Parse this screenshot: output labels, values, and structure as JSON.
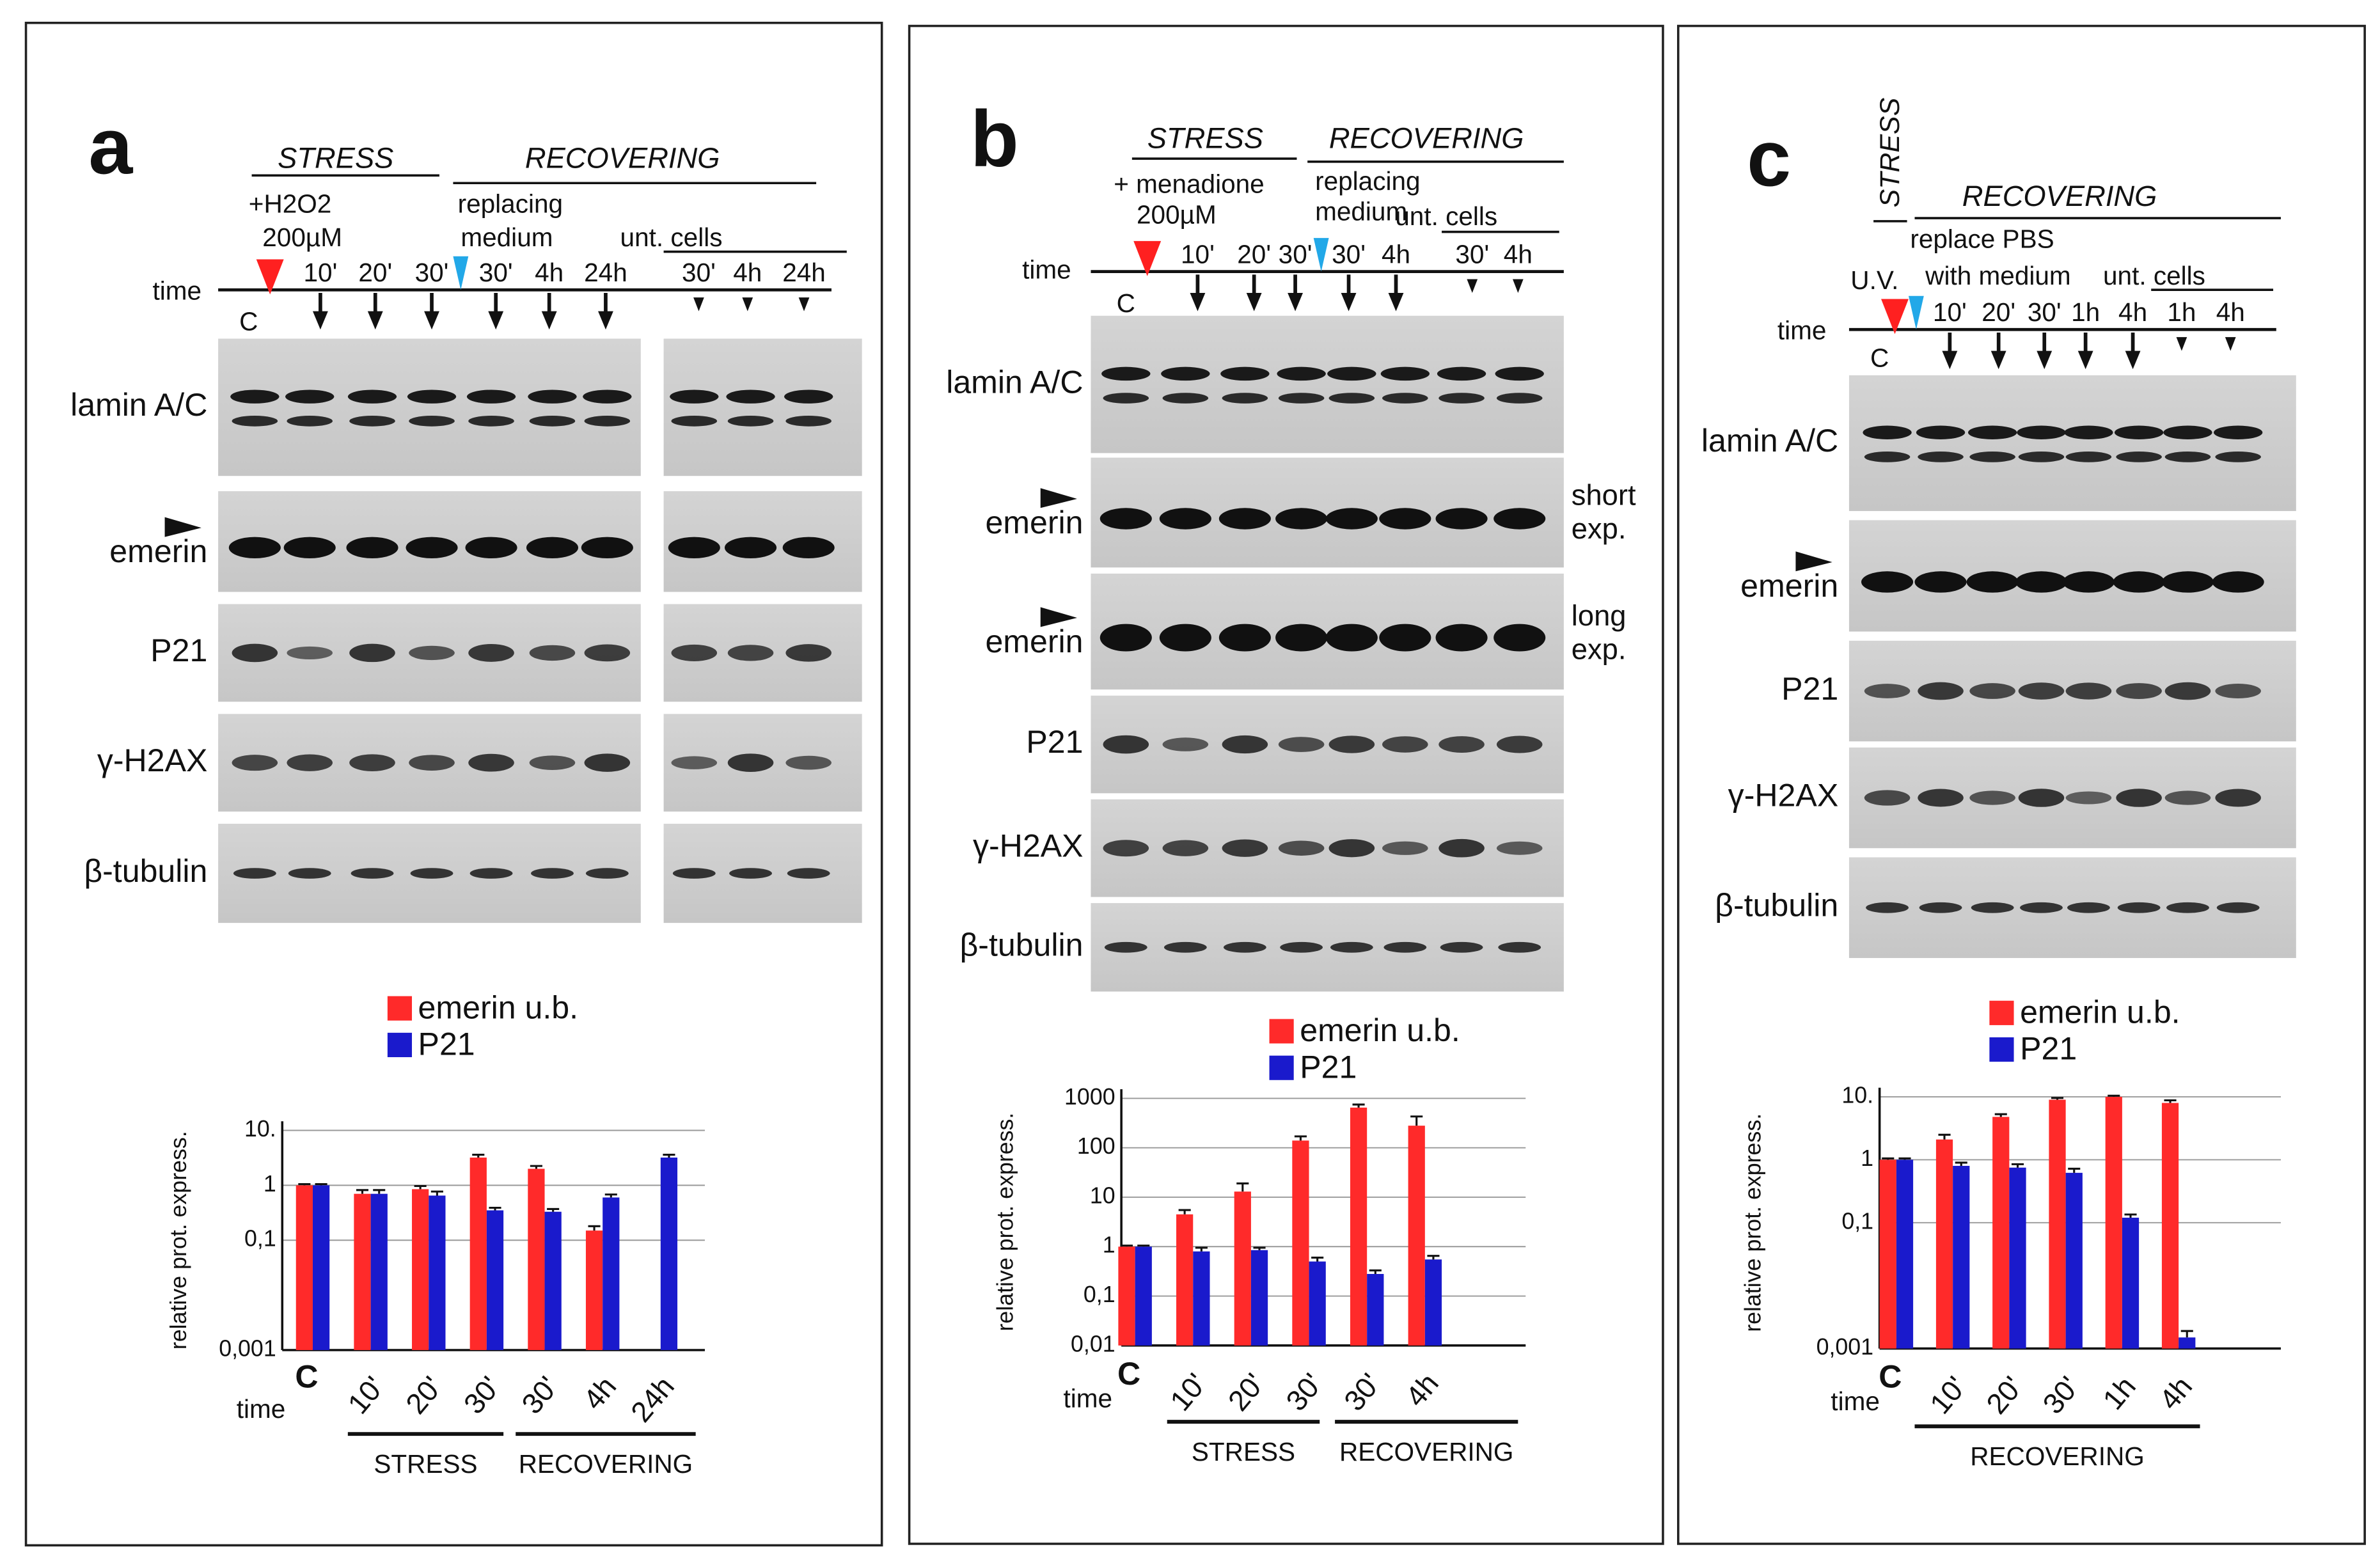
{
  "panels": [
    {
      "letter": "a",
      "stress": "STRESS",
      "recovering": "RECOVERING",
      "treatment": [
        "+H2O2",
        "200µM"
      ],
      "replacing": [
        "replacing",
        "medium"
      ],
      "untreated": "unt. cells",
      "time": "time",
      "control": "C",
      "lanes": [
        "10'",
        "20'",
        "30'",
        "30'",
        "4h",
        "24h",
        "30'",
        "4h",
        "24h"
      ],
      "blots": [
        "lamin A/C",
        "emerin",
        "P21",
        "γ-H2AX",
        "β-tubulin"
      ]
    },
    {
      "letter": "b",
      "stress": "STRESS",
      "recovering": "RECOVERING",
      "treatment": [
        "+ menadione",
        "200µM"
      ],
      "replacing": [
        "replacing",
        "medium"
      ],
      "untreated": "unt. cells",
      "time": "time",
      "control": "C",
      "lanes": [
        "10'",
        "20'",
        "30'",
        "30'",
        "4h",
        "30'",
        "4h"
      ],
      "blots": [
        "lamin A/C",
        "emerin",
        "emerin",
        "P21",
        "γ-H2AX",
        "β-tubulin"
      ],
      "exposures": [
        [
          "short",
          "exp."
        ],
        [
          "long",
          "exp."
        ]
      ]
    },
    {
      "letter": "c",
      "stress": "STRESS",
      "recovering": "RECOVERING",
      "treatment": [
        "U.V."
      ],
      "replacing": [
        "replace PBS",
        "with medium"
      ],
      "untreated": "unt. cells",
      "time": "time",
      "control": "C",
      "lanes": [
        "10'",
        "20'",
        "30'",
        "1h",
        "4h",
        "1h",
        "4h"
      ],
      "blots": [
        "lamin A/C",
        "emerin",
        "P21",
        "γ-H2AX",
        "β-tubulin"
      ]
    }
  ],
  "chart_data": [
    {
      "type": "bar",
      "log_scale": true,
      "grid": true,
      "ylabel": "relative prot. express.",
      "xlabel": "time",
      "categories": [
        "C",
        "10'",
        "20'",
        "30'",
        "30'",
        "4h",
        "24h"
      ],
      "series": [
        {
          "name": "emerin u.b.",
          "color": "#ff2a2a",
          "values": [
            1,
            0.7,
            0.85,
            3.2,
            2,
            0.15,
            null
          ],
          "errors": [
            0.05,
            0.12,
            0.12,
            0.4,
            0.25,
            0.03,
            null
          ]
        },
        {
          "name": "P21",
          "color": "#1a1acc",
          "values": [
            1,
            0.7,
            0.65,
            0.35,
            0.33,
            0.6,
            3.2
          ],
          "errors": [
            0.05,
            0.12,
            0.12,
            0.04,
            0.04,
            0.08,
            0.4
          ]
        }
      ],
      "groups": [
        "STRESS",
        "RECOVERING"
      ],
      "ylim": [
        0.001,
        10
      ],
      "yticks": [
        {
          "value": 0.001,
          "label": "0,001"
        },
        {
          "value": 0.1,
          "label": "0,1"
        },
        1,
        {
          "value": 10,
          "label": "10."
        }
      ]
    },
    {
      "type": "bar",
      "log_scale": true,
      "grid": true,
      "ylabel": "relative prot. express.",
      "xlabel": "time",
      "categories": [
        "C",
        "10'",
        "20'",
        "30'",
        "30'",
        "4h"
      ],
      "series": [
        {
          "name": "emerin u.b.",
          "color": "#ff2a2a",
          "values": [
            1,
            4.5,
            13,
            140,
            650,
            280
          ],
          "errors": [
            0.05,
            1,
            6,
            30,
            100,
            150
          ]
        },
        {
          "name": "P21",
          "color": "#1a1acc",
          "values": [
            1,
            0.8,
            0.85,
            0.5,
            0.28,
            0.55
          ],
          "errors": [
            0.05,
            0.15,
            0.1,
            0.1,
            0.05,
            0.1
          ]
        }
      ],
      "groups": [
        "STRESS",
        "RECOVERING"
      ],
      "ylim": [
        0.01,
        1000
      ],
      "yticks": [
        {
          "value": 0.01,
          "label": "0,01"
        },
        {
          "value": 0.1,
          "label": "0,1"
        },
        1,
        10,
        100,
        1000
      ]
    },
    {
      "type": "bar",
      "log_scale": true,
      "grid": true,
      "ylabel": "relative prot. express.",
      "xlabel": "time",
      "categories": [
        "C",
        "10'",
        "20'",
        "30'",
        "1h",
        "4h"
      ],
      "series": [
        {
          "name": "emerin u.b.",
          "color": "#ff2a2a",
          "values": [
            1,
            2.1,
            4.8,
            9,
            10,
            8
          ],
          "errors": [
            0.05,
            0.4,
            0.5,
            0.6,
            0.4,
            0.8
          ]
        },
        {
          "name": "P21",
          "color": "#1a1acc",
          "values": [
            1,
            0.8,
            0.75,
            0.62,
            0.12,
            0.0015
          ],
          "errors": [
            0.05,
            0.1,
            0.1,
            0.1,
            0.015,
            0.0004
          ]
        }
      ],
      "groups": [
        "RECOVERING"
      ],
      "ylim": [
        0.001,
        10
      ],
      "yticks": [
        {
          "value": 0.001,
          "label": "0,001"
        },
        {
          "value": 0.1,
          "label": "0,1"
        },
        1,
        {
          "value": 10,
          "label": "10."
        }
      ]
    }
  ]
}
